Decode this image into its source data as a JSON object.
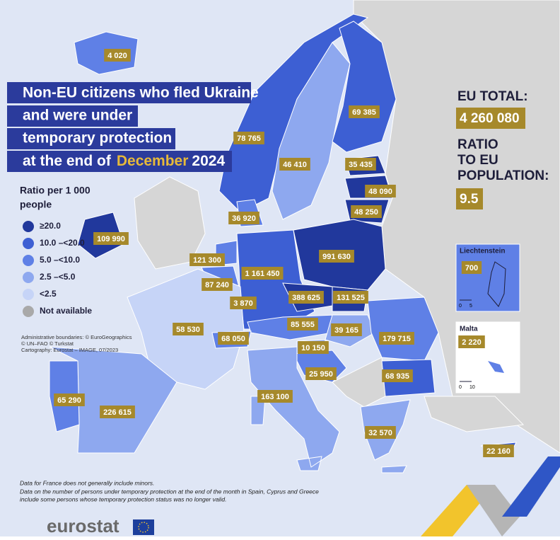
{
  "title": {
    "lines": [
      "Non-EU citizens who fled Ukraine",
      "and were under",
      "temporary protection",
      "at the end of"
    ],
    "month": "December",
    "year": "2024"
  },
  "totals": {
    "eu_total_label": "EU TOTAL:",
    "eu_total": "4 260 080",
    "ratio_label": [
      "RATIO",
      "TO EU",
      "POPULATION:"
    ],
    "ratio": "9.5"
  },
  "legend": {
    "title": [
      "Ratio per 1 000",
      "people"
    ],
    "items": [
      {
        "label": "≥20.0",
        "color": "#21389c"
      },
      {
        "label": "10.0 –<20.0",
        "color": "#3d5fd3"
      },
      {
        "label": "5.0 –<10.0",
        "color": "#5f80e6"
      },
      {
        "label": "2.5 –<5.0",
        "color": "#8ea8ef"
      },
      {
        "label": "<2.5",
        "color": "#c6d4f7"
      },
      {
        "label": "Not available",
        "color": "#a9a9a9"
      }
    ]
  },
  "sources": [
    "Administrative boundaries: © EuroGeographics",
    "© UN–FAO © Turkstat",
    "Cartography: Eurostat – IMAGE, 07/2023"
  ],
  "notes": [
    "Data for France does not generally include minors.",
    "Data on the number of persons under temporary protection at the end of the month in Spain, Cyprus and Greece",
    "include some persons whose temporary protection status was no longer valid."
  ],
  "insets": [
    {
      "title": "Liechtenstein",
      "value": "700",
      "scale": [
        "0",
        "5"
      ],
      "color": "#5f80e6"
    },
    {
      "title": "Malta",
      "value": "2 220",
      "scale": [
        "0",
        "10"
      ],
      "color": "#5f80e6"
    }
  ],
  "regions": [
    {
      "value": "4 020",
      "color": "#5f80e6"
    },
    {
      "value": "78 765",
      "color": "#3d5fd3"
    },
    {
      "value": "46 410",
      "color": "#8ea8ef"
    },
    {
      "value": "69 385",
      "color": "#3d5fd3"
    },
    {
      "value": "35 435",
      "color": "#21389c"
    },
    {
      "value": "48 090",
      "color": "#21389c"
    },
    {
      "value": "48 250",
      "color": "#21389c"
    },
    {
      "value": "36 920",
      "color": "#5f80e6"
    },
    {
      "value": "109 990",
      "color": "#21389c"
    },
    {
      "value": "121 300",
      "color": "#5f80e6"
    },
    {
      "value": "87 240",
      "color": "#5f80e6"
    },
    {
      "value": "3 870",
      "color": "#5f80e6"
    },
    {
      "value": "1 161 450",
      "color": "#3d5fd3"
    },
    {
      "value": "991 630",
      "color": "#21389c"
    },
    {
      "value": "388 625",
      "color": "#21389c"
    },
    {
      "value": "131 525",
      "color": "#21389c"
    },
    {
      "value": "85 555",
      "color": "#5f80e6"
    },
    {
      "value": "39 165",
      "color": "#8ea8ef"
    },
    {
      "value": "179 715",
      "color": "#5f80e6"
    },
    {
      "value": "58 530",
      "color": "#c6d4f7"
    },
    {
      "value": "68 050",
      "color": "#5f80e6"
    },
    {
      "value": "10 150",
      "color": "#8ea8ef"
    },
    {
      "value": "25 950",
      "color": "#5f80e6"
    },
    {
      "value": "68 935",
      "color": "#3d5fd3"
    },
    {
      "value": "163 100",
      "color": "#8ea8ef"
    },
    {
      "value": "226 615",
      "color": "#8ea8ef"
    },
    {
      "value": "65 290",
      "color": "#5f80e6"
    },
    {
      "value": "32 570",
      "color": "#8ea8ef"
    },
    {
      "value": "22 160",
      "color": "#3d5fd3"
    }
  ],
  "logo": "eurostat"
}
